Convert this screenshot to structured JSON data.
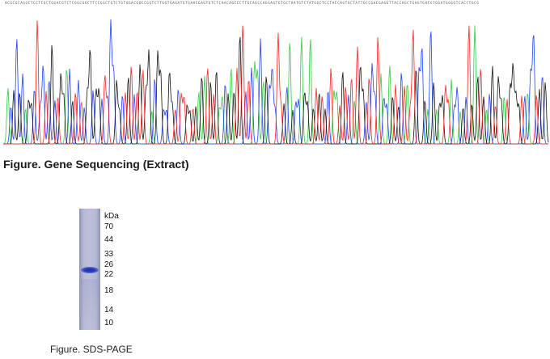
{
  "sequence_text": "ACGCGCAGGCTCCTCGCTGGACGTCTCGGCGGCTTCCGGCTGTCTGTGGACGGCCGGTCTTGGTGAGATGTGAACGAGTGTCTCAACAGCCCTTGCAGCCAGGAGTGTGCTAATGTCTATGGCTCCTACCAGTGCTATTGCCGACGAGGTTACCAGCTGAGTGACGTGGATGGGGTCACCTGCG",
  "figure_title": "Figure. Gene Sequencing (Extract)",
  "sds_page": {
    "unit": "kDa",
    "markers": [
      {
        "label": "70"
      },
      {
        "label": "44"
      },
      {
        "label": "33"
      },
      {
        "label": "26"
      },
      {
        "label": "22"
      },
      {
        "label": "18"
      },
      {
        "label": "14"
      },
      {
        "label": "10"
      }
    ],
    "caption": "Figure. SDS-PAGE"
  },
  "trace_colors": {
    "A": "#2ecc40",
    "C": "#1f3fff",
    "G": "#111111",
    "T": "#ff2020"
  }
}
